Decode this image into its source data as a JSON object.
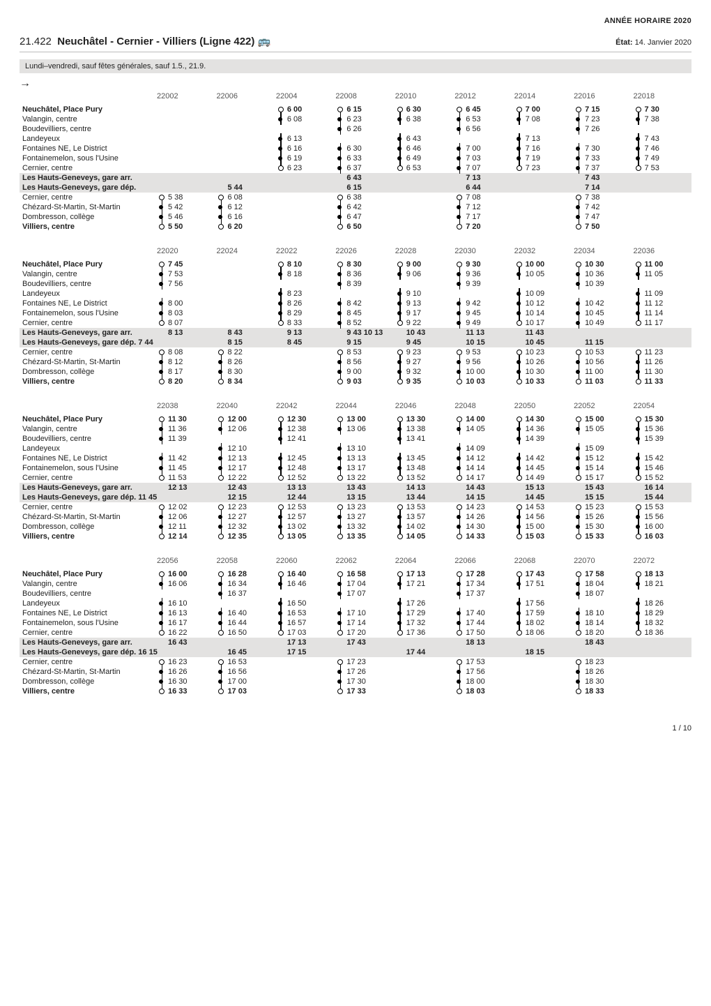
{
  "yearHeader": "ANNÉE HORAIRE 2020",
  "lineCode": "21.422",
  "lineName": "Neuchâtel - Cernier - Villiers (Ligne 422)",
  "modeGlyph": "🚌",
  "etatLabel": "État:",
  "etatValue": "14. Janvier 2020",
  "periodBand": "Lundi–vendredi, sauf fêtes générales, sauf 1.5., 21.9.",
  "footer": "1 / 10",
  "stopsA": [
    {
      "label": "Neuchâtel, Place Pury",
      "bold": true
    },
    {
      "label": "Valangin, centre"
    },
    {
      "label": "Boudevilliers, centre"
    },
    {
      "label": "Landeyeux"
    },
    {
      "label": "Fontaines NE, Le District"
    },
    {
      "label": "Fontainemelon, sous l'Usine"
    },
    {
      "label": "Cernier, centre"
    },
    {
      "label": "Les Hauts-Geneveys, gare arr."
    },
    {
      "label": "Les Hauts-Geneveys, gare dép."
    },
    {
      "label": "Cernier, centre"
    },
    {
      "label": "Chézard-St-Martin, St-Martin"
    },
    {
      "label": "Dombresson, collège"
    },
    {
      "label": "Villiers, centre",
      "bold": true
    }
  ],
  "block1": {
    "tripIds": [
      "22002",
      "22006",
      "22004",
      "22008",
      "22010",
      "22012",
      "22014",
      "22016",
      "22018"
    ],
    "rows": [
      [
        "",
        "",
        "6 00",
        "6 15",
        "6 30",
        "6 45",
        "7 00",
        "7 15",
        "7 30"
      ],
      [
        "",
        "",
        "6 08",
        "6 23",
        "6 38",
        "6 53",
        "7 08",
        "7 23",
        "7 38"
      ],
      [
        "",
        "",
        "",
        "6 26",
        "",
        "6 56",
        "",
        "7 26",
        ""
      ],
      [
        "",
        "",
        "6 13",
        "",
        "6 43",
        "",
        "7 13",
        "",
        "7 43"
      ],
      [
        "",
        "",
        "6 16",
        "6 30",
        "6 46",
        "7 00",
        "7 16",
        "7 30",
        "7 46"
      ],
      [
        "",
        "",
        "6 19",
        "6 33",
        "6 49",
        "7 03",
        "7 19",
        "7 33",
        "7 49"
      ],
      [
        "",
        "",
        "6 23",
        "6 37",
        "6 53",
        "7 07",
        "7 23",
        "7 37",
        "7 53"
      ],
      [
        "",
        "",
        "",
        "6 43",
        "",
        "7 13",
        "",
        "7 43",
        ""
      ],
      [
        "",
        "5 44",
        "",
        "6 15",
        "",
        "6 44",
        "",
        "7 14",
        ""
      ],
      [
        "5 38",
        "6 08",
        "",
        "6 38",
        "",
        "7 08",
        "",
        "7 38",
        ""
      ],
      [
        "5 42",
        "6 12",
        "",
        "6 42",
        "",
        "7 12",
        "",
        "7 42",
        ""
      ],
      [
        "5 46",
        "6 16",
        "",
        "6 47",
        "",
        "7 17",
        "",
        "7 47",
        ""
      ],
      [
        "5 50",
        "6 20",
        "",
        "6 50",
        "",
        "7 20",
        "",
        "7 50",
        ""
      ]
    ],
    "seg": [
      [
        "",
        "",
        "s",
        "s",
        "s",
        "s",
        "s",
        "s",
        "s"
      ],
      [
        "",
        "",
        "m",
        "m",
        "m",
        "m",
        "m",
        "m",
        "m"
      ],
      [
        "",
        "",
        "",
        "m",
        "",
        "m",
        "",
        "m",
        ""
      ],
      [
        "",
        "",
        "m",
        "",
        "m",
        "",
        "m",
        "",
        "m"
      ],
      [
        "",
        "",
        "m",
        "m",
        "m",
        "m",
        "m",
        "m",
        "m"
      ],
      [
        "",
        "",
        "m",
        "m",
        "m",
        "m",
        "m",
        "m",
        "m"
      ],
      [
        "",
        "",
        "e",
        "m",
        "e",
        "m",
        "e",
        "m",
        "e"
      ],
      [
        "",
        "",
        "",
        "b",
        "",
        "b",
        "",
        "b",
        ""
      ],
      [
        "",
        "b",
        "",
        "b",
        "",
        "b",
        "",
        "b",
        ""
      ],
      [
        "s",
        "s",
        "",
        "s",
        "",
        "s",
        "",
        "s",
        ""
      ],
      [
        "m",
        "m",
        "",
        "m",
        "",
        "m",
        "",
        "m",
        ""
      ],
      [
        "m",
        "m",
        "",
        "m",
        "",
        "m",
        "",
        "m",
        ""
      ],
      [
        "e",
        "e",
        "",
        "e",
        "",
        "e",
        "",
        "e",
        ""
      ]
    ]
  },
  "block2": {
    "tripIds": [
      "22020",
      "22024",
      "22022",
      "22026",
      "22028",
      "22030",
      "22032",
      "22034",
      "22036"
    ],
    "depOverride": "7 44",
    "rows": [
      [
        "7 45",
        "",
        "8 10",
        "8 30",
        "9 00",
        "9 30",
        "10 00",
        "10 30",
        "11 00"
      ],
      [
        "7 53",
        "",
        "8 18",
        "8 36",
        "9 06",
        "9 36",
        "10 05",
        "10 36",
        "11 05"
      ],
      [
        "7 56",
        "",
        "",
        "8 39",
        "",
        "9 39",
        "",
        "10 39",
        ""
      ],
      [
        "",
        "",
        "8 23",
        "",
        "9 10",
        "",
        "10 09",
        "",
        "11 09"
      ],
      [
        "8 00",
        "",
        "8 26",
        "8 42",
        "9 13",
        "9 42",
        "10 12",
        "10 42",
        "11 12"
      ],
      [
        "8 03",
        "",
        "8 29",
        "8 45",
        "9 17",
        "9 45",
        "10 14",
        "10 45",
        "11 14"
      ],
      [
        "8 07",
        "",
        "8 33",
        "8 52",
        "9 22",
        "9 49",
        "10 17",
        "10 49",
        "11 17"
      ],
      [
        "",
        "8 13",
        "",
        "8 43",
        "9 13",
        "",
        "9 43",
        "10 13",
        "",
        "10 43",
        "11 13",
        "",
        "11 43"
      ],
      [
        "",
        "",
        "8 15",
        "",
        "8 45",
        "",
        "9 15",
        "",
        "9 45",
        "",
        "10 15",
        "",
        "10 45",
        "",
        "11 15",
        ""
      ],
      [
        "8 08",
        "8 22",
        "",
        "8 53",
        "9 23",
        "9 53",
        "10 23",
        "10 53",
        "11 23"
      ],
      [
        "8 12",
        "8 26",
        "",
        "8 56",
        "9 27",
        "9 56",
        "10 26",
        "10 56",
        "11 26"
      ],
      [
        "8 17",
        "8 30",
        "",
        "9 00",
        "9 32",
        "10 00",
        "10 30",
        "11 00",
        "11 30"
      ],
      [
        "8 20",
        "8 34",
        "",
        "9 03",
        "9 35",
        "10 03",
        "10 33",
        "11 03",
        "11 33"
      ]
    ],
    "seg": [
      [
        "s",
        "",
        "s",
        "s",
        "s",
        "s",
        "s",
        "s",
        "s"
      ],
      [
        "m",
        "",
        "m",
        "m",
        "m",
        "m",
        "m",
        "m",
        "m"
      ],
      [
        "m",
        "",
        "",
        "m",
        "",
        "m",
        "",
        "m",
        ""
      ],
      [
        "",
        "",
        "m",
        "",
        "m",
        "",
        "m",
        "",
        "m"
      ],
      [
        "m",
        "",
        "m",
        "m",
        "m",
        "m",
        "m",
        "m",
        "m"
      ],
      [
        "m",
        "",
        "m",
        "m",
        "m",
        "m",
        "m",
        "m",
        "m"
      ],
      [
        "e",
        "",
        "e",
        "m",
        "e",
        "m",
        "e",
        "m",
        "e"
      ],
      [
        "",
        "b",
        "",
        "b",
        "b",
        "",
        "b",
        "b",
        "",
        "b",
        "b",
        "",
        "b"
      ],
      [
        "",
        "",
        "b",
        "",
        "b",
        "",
        "b",
        "",
        "b",
        "",
        "b",
        "",
        "b",
        "",
        "b",
        ""
      ],
      [
        "s",
        "s",
        "",
        "s",
        "s",
        "s",
        "s",
        "s",
        "s"
      ],
      [
        "m",
        "m",
        "",
        "m",
        "m",
        "m",
        "m",
        "m",
        "m"
      ],
      [
        "m",
        "m",
        "",
        "m",
        "m",
        "m",
        "m",
        "m",
        "m"
      ],
      [
        "e",
        "e",
        "",
        "e",
        "e",
        "e",
        "e",
        "e",
        "e"
      ]
    ]
  },
  "block3": {
    "tripIds": [
      "22038",
      "22040",
      "22042",
      "22044",
      "22046",
      "22048",
      "22050",
      "22052",
      "22054"
    ],
    "depOverride": "11 45",
    "rows": [
      [
        "11 30",
        "12 00",
        "12 30",
        "13 00",
        "13 30",
        "14 00",
        "14 30",
        "15 00",
        "15 30"
      ],
      [
        "11 36",
        "12 06",
        "12 38",
        "13 06",
        "13 38",
        "14 05",
        "14 36",
        "15 05",
        "15 36"
      ],
      [
        "11 39",
        "",
        "12 41",
        "",
        "13 41",
        "",
        "14 39",
        "",
        "15 39"
      ],
      [
        "",
        "12 10",
        "",
        "13 10",
        "",
        "14 09",
        "",
        "15 09",
        ""
      ],
      [
        "11 42",
        "12 13",
        "12 45",
        "13 13",
        "13 45",
        "14 12",
        "14 42",
        "15 12",
        "15 42"
      ],
      [
        "11 45",
        "12 17",
        "12 48",
        "13 17",
        "13 48",
        "14 14",
        "14 45",
        "15 14",
        "15 46"
      ],
      [
        "11 53",
        "12 22",
        "12 52",
        "13 22",
        "13 52",
        "14 17",
        "14 49",
        "15 17",
        "15 52"
      ],
      [
        "",
        "12 13",
        "",
        "12 43",
        "",
        "13 13",
        "",
        "13 43",
        "",
        "14 13",
        "",
        "14 43",
        "",
        "15 13",
        "",
        "15 43",
        "",
        "16 14"
      ],
      [
        "",
        "",
        "12 15",
        "",
        "12 44",
        "",
        "13 15",
        "",
        "13 44",
        "",
        "14 15",
        "",
        "14 45",
        "",
        "15 15",
        "",
        "15 44",
        ""
      ],
      [
        "12 02",
        "12 23",
        "12 53",
        "13 23",
        "13 53",
        "14 23",
        "14 53",
        "15 23",
        "15 53"
      ],
      [
        "12 06",
        "12 27",
        "12 57",
        "13 27",
        "13 57",
        "14 26",
        "14 56",
        "15 26",
        "15 56"
      ],
      [
        "12 11",
        "12 32",
        "13 02",
        "13 32",
        "14 02",
        "14 30",
        "15 00",
        "15 30",
        "16 00"
      ],
      [
        "12 14",
        "12 35",
        "13 05",
        "13 35",
        "14 05",
        "14 33",
        "15 03",
        "15 33",
        "16 03"
      ]
    ],
    "seg": [
      [
        "s",
        "s",
        "s",
        "s",
        "s",
        "s",
        "s",
        "s",
        "s"
      ],
      [
        "m",
        "m",
        "m",
        "m",
        "m",
        "m",
        "m",
        "m",
        "m"
      ],
      [
        "m",
        "",
        "m",
        "",
        "m",
        "",
        "m",
        "",
        "m"
      ],
      [
        "",
        "m",
        "",
        "m",
        "",
        "m",
        "",
        "m",
        ""
      ],
      [
        "m",
        "m",
        "m",
        "m",
        "m",
        "m",
        "m",
        "m",
        "m"
      ],
      [
        "m",
        "m",
        "m",
        "m",
        "m",
        "m",
        "m",
        "m",
        "m"
      ],
      [
        "e",
        "e",
        "e",
        "e",
        "e",
        "e",
        "e",
        "e",
        "e"
      ],
      [
        "",
        "b",
        "",
        "b",
        "",
        "b",
        "",
        "b",
        "",
        "b",
        "",
        "b",
        "",
        "b",
        "",
        "b",
        "",
        "b"
      ],
      [
        "",
        "",
        "b",
        "",
        "b",
        "",
        "b",
        "",
        "b",
        "",
        "b",
        "",
        "b",
        "",
        "b",
        "",
        "b",
        ""
      ],
      [
        "s",
        "s",
        "s",
        "s",
        "s",
        "s",
        "s",
        "s",
        "s"
      ],
      [
        "m",
        "m",
        "m",
        "m",
        "m",
        "m",
        "m",
        "m",
        "m"
      ],
      [
        "m",
        "m",
        "m",
        "m",
        "m",
        "m",
        "m",
        "m",
        "m"
      ],
      [
        "e",
        "e",
        "e",
        "e",
        "e",
        "e",
        "e",
        "e",
        "e"
      ]
    ]
  },
  "block4": {
    "tripIds": [
      "22056",
      "22058",
      "22060",
      "22062",
      "22064",
      "22066",
      "22068",
      "22070",
      "22072"
    ],
    "depOverride": "16 15",
    "rows": [
      [
        "16 00",
        "16 28",
        "16 40",
        "16 58",
        "17 13",
        "17 28",
        "17 43",
        "17 58",
        "18 13"
      ],
      [
        "16 06",
        "16 34",
        "16 46",
        "17 04",
        "17 21",
        "17 34",
        "17 51",
        "18 04",
        "18 21"
      ],
      [
        "",
        "16 37",
        "",
        "17 07",
        "",
        "17 37",
        "",
        "18 07",
        ""
      ],
      [
        "16 10",
        "",
        "16 50",
        "",
        "17 26",
        "",
        "17 56",
        "",
        "18 26"
      ],
      [
        "16 13",
        "16 40",
        "16 53",
        "17 10",
        "17 29",
        "17 40",
        "17 59",
        "18 10",
        "18 29"
      ],
      [
        "16 17",
        "16 44",
        "16 57",
        "17 14",
        "17 32",
        "17 44",
        "18 02",
        "18 14",
        "18 32"
      ],
      [
        "16 22",
        "16 50",
        "17 03",
        "17 20",
        "17 36",
        "17 50",
        "18 06",
        "18 20",
        "18 36"
      ],
      [
        "",
        "16 43",
        "",
        "",
        "17 13",
        "",
        "",
        "17 43",
        "",
        "",
        "18 13",
        "",
        "",
        "",
        "18 43"
      ],
      [
        "",
        "",
        "16 45",
        "",
        "",
        "17 15",
        "",
        "",
        "17 44",
        "",
        "",
        "",
        "18 15",
        "",
        ""
      ],
      [
        "16 23",
        "16 53",
        "",
        "17 23",
        "",
        "17 53",
        "",
        "18 23",
        ""
      ],
      [
        "16 26",
        "16 56",
        "",
        "17 26",
        "",
        "17 56",
        "",
        "18 26",
        ""
      ],
      [
        "16 30",
        "17 00",
        "",
        "17 30",
        "",
        "18 00",
        "",
        "18 30",
        ""
      ],
      [
        "16 33",
        "17 03",
        "",
        "17 33",
        "",
        "18 03",
        "",
        "18 33",
        ""
      ]
    ],
    "seg": [
      [
        "s",
        "s",
        "s",
        "s",
        "s",
        "s",
        "s",
        "s",
        "s"
      ],
      [
        "m",
        "m",
        "m",
        "m",
        "m",
        "m",
        "m",
        "m",
        "m"
      ],
      [
        "",
        "m",
        "",
        "m",
        "",
        "m",
        "",
        "m",
        ""
      ],
      [
        "m",
        "",
        "m",
        "",
        "m",
        "",
        "m",
        "",
        "m"
      ],
      [
        "m",
        "m",
        "m",
        "m",
        "m",
        "m",
        "m",
        "m",
        "m"
      ],
      [
        "m",
        "m",
        "m",
        "m",
        "m",
        "m",
        "m",
        "m",
        "m"
      ],
      [
        "e",
        "e",
        "e",
        "e",
        "e",
        "e",
        "e",
        "e",
        "e"
      ],
      [
        "",
        "b",
        "",
        "",
        "b",
        "",
        "",
        "b",
        "",
        "",
        "b",
        "",
        "",
        "",
        "b"
      ],
      [
        "",
        "",
        "b",
        "",
        "",
        "b",
        "",
        "",
        "b",
        "",
        "",
        "",
        "b",
        "",
        ""
      ],
      [
        "s",
        "s",
        "",
        "s",
        "",
        "s",
        "",
        "s",
        ""
      ],
      [
        "m",
        "m",
        "",
        "m",
        "",
        "m",
        "",
        "m",
        ""
      ],
      [
        "m",
        "m",
        "",
        "m",
        "",
        "m",
        "",
        "m",
        ""
      ],
      [
        "e",
        "e",
        "",
        "e",
        "",
        "e",
        "",
        "e",
        ""
      ]
    ]
  }
}
